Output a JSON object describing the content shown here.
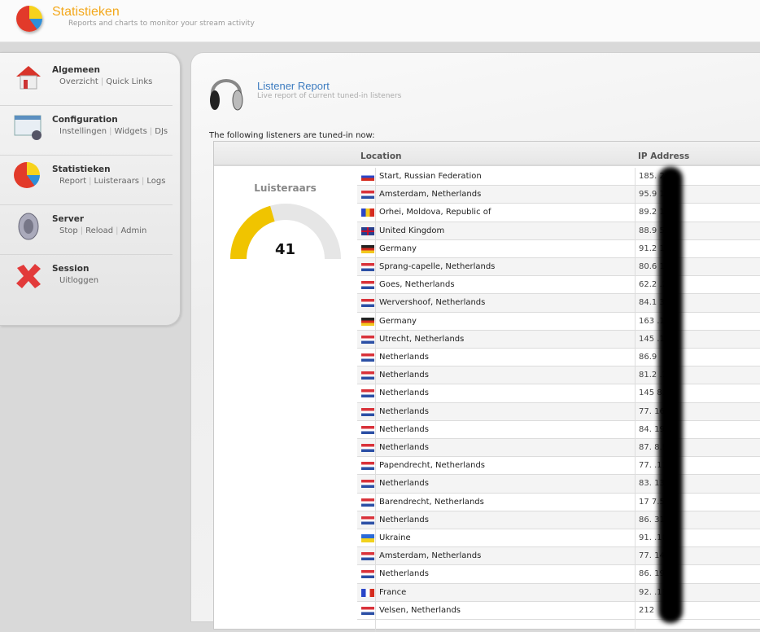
{
  "header": {
    "title": "Statistieken",
    "subtitle": "Reports and charts to monitor your stream activity",
    "logo_icon": "pie-chart-icon"
  },
  "sidebar": [
    {
      "title": "Algemeen",
      "icon": "house-icon",
      "links": [
        "Overzicht",
        "Quick Links"
      ]
    },
    {
      "title": "Configuration",
      "icon": "settings-window-icon",
      "links": [
        "Instellingen",
        "Widgets",
        "DJs"
      ]
    },
    {
      "title": "Statistieken",
      "icon": "pie-chart-icon",
      "links": [
        "Report",
        "Luisteraars",
        "Logs"
      ]
    },
    {
      "title": "Server",
      "icon": "speaker-icon",
      "links": [
        "Stop",
        "Reload",
        "Admin"
      ]
    },
    {
      "title": "Session",
      "icon": "red-x-icon",
      "links": [
        "Uitloggen"
      ]
    }
  ],
  "report": {
    "title": "Listener Report",
    "subtitle": "Live report of current tuned-in listeners",
    "intro": "The following listeners are tuned-in now:",
    "icon": "headphones-icon"
  },
  "table": {
    "headers": {
      "location": "Location",
      "ip": "IP Address"
    }
  },
  "gauge": {
    "label": "Luisteraars",
    "value": 41,
    "max": 100,
    "fill_color": "#f0c400",
    "track_color": "#e6e6e6"
  },
  "listeners": [
    {
      "flag": "ru",
      "location": "Start, Russian Federation",
      "ip": "185.  2.71"
    },
    {
      "flag": "nl",
      "location": "Amsterdam, Netherlands",
      "ip": "95.9  130"
    },
    {
      "flag": "md",
      "location": "Orhei, Moldova, Republic of",
      "ip": "89.2  181"
    },
    {
      "flag": "gb",
      "location": "United Kingdom",
      "ip": "88.9  56"
    },
    {
      "flag": "de",
      "location": "Germany",
      "ip": "91.2  10"
    },
    {
      "flag": "nl",
      "location": "Sprang-capelle, Netherlands",
      "ip": "80.6  16"
    },
    {
      "flag": "nl",
      "location": "Goes, Netherlands",
      "ip": "62.2  .215"
    },
    {
      "flag": "nl",
      "location": "Wervershoof, Netherlands",
      "ip": "84.1  37"
    },
    {
      "flag": "de",
      "location": "Germany",
      "ip": "163  .114"
    },
    {
      "flag": "nl",
      "location": "Utrecht, Netherlands",
      "ip": "145  .174"
    },
    {
      "flag": "nl",
      "location": "Netherlands",
      "ip": "86.9"
    },
    {
      "flag": "nl",
      "location": "Netherlands",
      "ip": "81.2  .158"
    },
    {
      "flag": "nl",
      "location": "Netherlands",
      "ip": "145  8.24"
    },
    {
      "flag": "nl",
      "location": "Netherlands",
      "ip": "77.  16"
    },
    {
      "flag": "nl",
      "location": "Netherlands",
      "ip": "84.  198"
    },
    {
      "flag": "nl",
      "location": "Netherlands",
      "ip": "87.  8.81"
    },
    {
      "flag": "nl",
      "location": "Papendrecht, Netherlands",
      "ip": "77.  .178"
    },
    {
      "flag": "nl",
      "location": "Netherlands",
      "ip": "83.  134"
    },
    {
      "flag": "nl",
      "location": "Barendrecht, Netherlands",
      "ip": "17  7.55"
    },
    {
      "flag": "nl",
      "location": "Netherlands",
      "ip": "86.  31"
    },
    {
      "flag": "ua",
      "location": "Ukraine",
      "ip": "91.  .108"
    },
    {
      "flag": "nl",
      "location": "Amsterdam, Netherlands",
      "ip": "77.  144"
    },
    {
      "flag": "nl",
      "location": "Netherlands",
      "ip": "86.  197"
    },
    {
      "flag": "fr",
      "location": "France",
      "ip": "92.  .139"
    },
    {
      "flag": "nl",
      "location": "Velsen, Netherlands",
      "ip": "212"
    }
  ]
}
